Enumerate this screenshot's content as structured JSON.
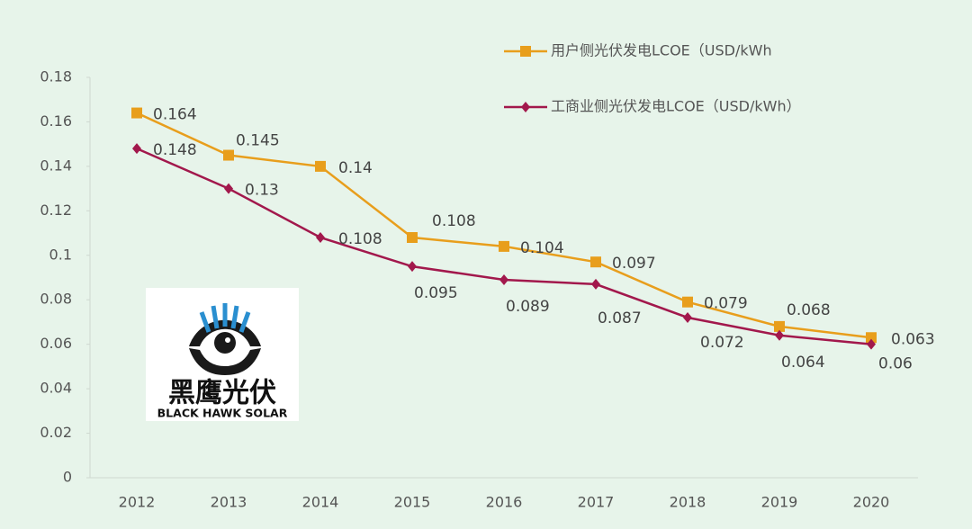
{
  "chart_data": {
    "type": "line",
    "categories": [
      "2012",
      "2013",
      "2014",
      "2015",
      "2016",
      "2017",
      "2018",
      "2019",
      "2020"
    ],
    "series": [
      {
        "name": "用户侧光伏发电LCOE（USD/kWh",
        "color": "#e89e1c",
        "marker": "square",
        "values": [
          0.164,
          0.145,
          0.14,
          0.108,
          0.104,
          0.097,
          0.079,
          0.068,
          0.063
        ]
      },
      {
        "name": "工商业侧光伏发电LCOE（USD/kWh）",
        "color": "#a2184c",
        "marker": "diamond",
        "values": [
          0.148,
          0.13,
          0.108,
          0.095,
          0.089,
          0.087,
          0.072,
          0.064,
          0.06
        ]
      }
    ],
    "ylim": [
      0,
      0.18
    ],
    "yticks": [
      0,
      0.02,
      0.04,
      0.06,
      0.08,
      0.1,
      0.12,
      0.14,
      0.16,
      0.18
    ],
    "grid": false,
    "legend": "top-right",
    "logo": {
      "title": "黑鹰光伏",
      "subtitle": "BLACK HAWK SOLAR"
    }
  }
}
